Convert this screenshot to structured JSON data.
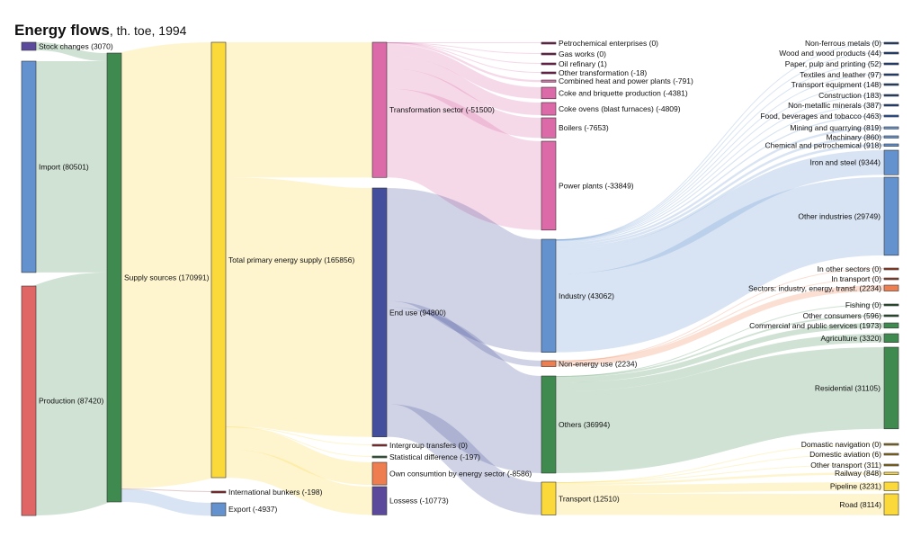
{
  "title": {
    "main": "Energy flows",
    "sub": ", th. toe, 1994"
  },
  "chart_data": {
    "type": "sankey",
    "title": "Energy flows, th. toe, 1994",
    "units": "th. toe",
    "year": "1994",
    "nodes": [
      {
        "id": "stock",
        "label": "Stock changes (3070)",
        "value": 3070,
        "color": "#5b4a9b",
        "column": 0
      },
      {
        "id": "import",
        "label": "Import (80501)",
        "value": 80501,
        "color": "#6392cf",
        "column": 0
      },
      {
        "id": "production",
        "label": "Production (87420)",
        "value": 87420,
        "color": "#e06666",
        "column": 0
      },
      {
        "id": "supply",
        "label": "Supply sources (170991)",
        "value": 170991,
        "color": "#3f8a4f",
        "column": 1
      },
      {
        "id": "tpes",
        "label": "Total primary energy supply (165856)",
        "value": 165856,
        "color": "#fcd93a",
        "column": 2
      },
      {
        "id": "bunkers",
        "label": "International bunkers (-198)",
        "value": 198,
        "color": "#8b2a2a",
        "column": 2
      },
      {
        "id": "export",
        "label": "Export (-4937)",
        "value": 4937,
        "color": "#6392cf",
        "column": 2
      },
      {
        "id": "transformation",
        "label": "Transformation sector (-51500)",
        "value": 51500,
        "color": "#dc69a8",
        "column": 3
      },
      {
        "id": "enduse",
        "label": "End use (94800)",
        "value": 94800,
        "color": "#434f9c",
        "column": 3
      },
      {
        "id": "intergroup",
        "label": "Intergroup transfers (0)",
        "value": 0,
        "color": "#8b2a2a",
        "column": 3
      },
      {
        "id": "statdiff",
        "label": "Statistical difference (-197)",
        "value": 197,
        "color": "#2f5d3a",
        "column": 3
      },
      {
        "id": "own",
        "label": "Own consumtion by energy sector (-8586)",
        "value": 8586,
        "color": "#ee7e50",
        "column": 3
      },
      {
        "id": "losses",
        "label": "Lossess (-10773)",
        "value": 10773,
        "color": "#5b4a9b",
        "column": 3
      },
      {
        "id": "petrochem",
        "label": "Petrochemical enterprises (0)",
        "value": 0,
        "color": "#7a1a4f",
        "column": 4
      },
      {
        "id": "gasworks",
        "label": "Gas works (0)",
        "value": 0,
        "color": "#7a1a4f",
        "column": 4
      },
      {
        "id": "oilref",
        "label": "Oil refinary (1)",
        "value": 1,
        "color": "#7a1a4f",
        "column": 4
      },
      {
        "id": "othertransf",
        "label": "Other transformation (-18)",
        "value": 18,
        "color": "#7a1a4f",
        "column": 4
      },
      {
        "id": "chp",
        "label": "Combined heat and power plants (-791)",
        "value": 791,
        "color": "#dc69a8",
        "column": 4
      },
      {
        "id": "coke",
        "label": "Coke and briquette production (-4381)",
        "value": 4381,
        "color": "#dc69a8",
        "column": 4
      },
      {
        "id": "cokeovens",
        "label": "Coke ovens (blast furnaces) (-4809)",
        "value": 4809,
        "color": "#dc69a8",
        "column": 4
      },
      {
        "id": "boilers",
        "label": "Boilers (-7653)",
        "value": 7653,
        "color": "#dc69a8",
        "column": 4
      },
      {
        "id": "power",
        "label": "Power plants (-33849)",
        "value": 33849,
        "color": "#dc69a8",
        "column": 4
      },
      {
        "id": "industry",
        "label": "Industry (43062)",
        "value": 43062,
        "color": "#6392cf",
        "column": 4
      },
      {
        "id": "nonenergy",
        "label": "Non-energy use (2234)",
        "value": 2234,
        "color": "#ee7e50",
        "column": 4
      },
      {
        "id": "others",
        "label": "Others (36994)",
        "value": 36994,
        "color": "#3f8a4f",
        "column": 4
      },
      {
        "id": "transport",
        "label": "Transport (12510)",
        "value": 12510,
        "color": "#fcd93a",
        "column": 4
      },
      {
        "id": "nonferrous",
        "label": "Non-ferrous metals (0)",
        "value": 0,
        "color": "#1e3f7a",
        "column": 5
      },
      {
        "id": "wood",
        "label": "Wood and wood products (44)",
        "value": 44,
        "color": "#1e3f7a",
        "column": 5
      },
      {
        "id": "paper",
        "label": "Paper, pulp and printing (52)",
        "value": 52,
        "color": "#1e3f7a",
        "column": 5
      },
      {
        "id": "textiles",
        "label": "Textiles and leather (97)",
        "value": 97,
        "color": "#1e3f7a",
        "column": 5
      },
      {
        "id": "transpeq",
        "label": "Transport equipment (148)",
        "value": 148,
        "color": "#1e3f7a",
        "column": 5
      },
      {
        "id": "construction",
        "label": "Construction (183)",
        "value": 183,
        "color": "#1e3f7a",
        "column": 5
      },
      {
        "id": "nonmetallic",
        "label": "Non-metallic minerals (387)",
        "value": 387,
        "color": "#1e3f7a",
        "column": 5
      },
      {
        "id": "food",
        "label": "Food, beverages and tobacco (463)",
        "value": 463,
        "color": "#2a55a0",
        "column": 5
      },
      {
        "id": "mining",
        "label": "Mining and quarrying (819)",
        "value": 819,
        "color": "#6392cf",
        "column": 5
      },
      {
        "id": "machinary",
        "label": "Machinary (860)",
        "value": 860,
        "color": "#6392cf",
        "column": 5
      },
      {
        "id": "chemical",
        "label": "Chemical and petrochemical (918)",
        "value": 918,
        "color": "#6392cf",
        "column": 5
      },
      {
        "id": "ironsteel",
        "label": "Iron and steel (9344)",
        "value": 9344,
        "color": "#6392cf",
        "column": 5
      },
      {
        "id": "otherind",
        "label": "Other industries (29749)",
        "value": 29749,
        "color": "#6392cf",
        "column": 5
      },
      {
        "id": "inothersectors",
        "label": "In other sectors (0)",
        "value": 0,
        "color": "#9a3a22",
        "column": 5
      },
      {
        "id": "intransport",
        "label": "In transport (0)",
        "value": 0,
        "color": "#9a3a22",
        "column": 5
      },
      {
        "id": "sectorsind",
        "label": "Sectors: industry, energy, transf. (2234)",
        "value": 2234,
        "color": "#ee7e50",
        "column": 5
      },
      {
        "id": "fishing",
        "label": "Fishing (0)",
        "value": 0,
        "color": "#244f2c",
        "column": 5
      },
      {
        "id": "otherconsumers",
        "label": "Other consumers (596)",
        "value": 596,
        "color": "#244f2c",
        "column": 5
      },
      {
        "id": "commercial",
        "label": "Commercial and public services (1973)",
        "value": 1973,
        "color": "#3f8a4f",
        "column": 5
      },
      {
        "id": "agriculture",
        "label": "Agriculture (3320)",
        "value": 3320,
        "color": "#3f8a4f",
        "column": 5
      },
      {
        "id": "residential",
        "label": "Residential (31105)",
        "value": 31105,
        "color": "#3f8a4f",
        "column": 5
      },
      {
        "id": "domnav",
        "label": "Domastic navigation (0)",
        "value": 0,
        "color": "#8a6d1a",
        "column": 5
      },
      {
        "id": "domavi",
        "label": "Domestic aviation (6)",
        "value": 6,
        "color": "#8a6d1a",
        "column": 5
      },
      {
        "id": "othertransport",
        "label": "Other transport (311)",
        "value": 311,
        "color": "#8a6d1a",
        "column": 5
      },
      {
        "id": "railway",
        "label": "Railway (848)",
        "value": 848,
        "color": "#fcd93a",
        "column": 5
      },
      {
        "id": "pipeline",
        "label": "Pipeline (3231)",
        "value": 3231,
        "color": "#fcd93a",
        "column": 5
      },
      {
        "id": "road",
        "label": "Road (8114)",
        "value": 8114,
        "color": "#fcd93a",
        "column": 5
      }
    ],
    "links": [
      {
        "source": "stock",
        "target": "supply",
        "value": 3070
      },
      {
        "source": "import",
        "target": "supply",
        "value": 80501
      },
      {
        "source": "production",
        "target": "supply",
        "value": 87420
      },
      {
        "source": "supply",
        "target": "tpes",
        "value": 165856
      },
      {
        "source": "supply",
        "target": "bunkers",
        "value": 198
      },
      {
        "source": "supply",
        "target": "export",
        "value": 4937
      },
      {
        "source": "tpes",
        "target": "transformation",
        "value": 51500
      },
      {
        "source": "tpes",
        "target": "enduse",
        "value": 94800
      },
      {
        "source": "tpes",
        "target": "intergroup",
        "value": 0
      },
      {
        "source": "tpes",
        "target": "statdiff",
        "value": 197
      },
      {
        "source": "tpes",
        "target": "own",
        "value": 8586
      },
      {
        "source": "tpes",
        "target": "losses",
        "value": 10773
      },
      {
        "source": "transformation",
        "target": "petrochem",
        "value": 0
      },
      {
        "source": "transformation",
        "target": "gasworks",
        "value": 0
      },
      {
        "source": "transformation",
        "target": "oilref",
        "value": 1
      },
      {
        "source": "transformation",
        "target": "othertransf",
        "value": 18
      },
      {
        "source": "transformation",
        "target": "chp",
        "value": 791
      },
      {
        "source": "transformation",
        "target": "coke",
        "value": 4381
      },
      {
        "source": "transformation",
        "target": "cokeovens",
        "value": 4809
      },
      {
        "source": "transformation",
        "target": "boilers",
        "value": 7653
      },
      {
        "source": "transformation",
        "target": "power",
        "value": 33849
      },
      {
        "source": "enduse",
        "target": "industry",
        "value": 43062
      },
      {
        "source": "enduse",
        "target": "nonenergy",
        "value": 2234
      },
      {
        "source": "enduse",
        "target": "others",
        "value": 36994
      },
      {
        "source": "enduse",
        "target": "transport",
        "value": 12510
      },
      {
        "source": "industry",
        "target": "nonferrous",
        "value": 0
      },
      {
        "source": "industry",
        "target": "wood",
        "value": 44
      },
      {
        "source": "industry",
        "target": "paper",
        "value": 52
      },
      {
        "source": "industry",
        "target": "textiles",
        "value": 97
      },
      {
        "source": "industry",
        "target": "transpeq",
        "value": 148
      },
      {
        "source": "industry",
        "target": "construction",
        "value": 183
      },
      {
        "source": "industry",
        "target": "nonmetallic",
        "value": 387
      },
      {
        "source": "industry",
        "target": "food",
        "value": 463
      },
      {
        "source": "industry",
        "target": "mining",
        "value": 819
      },
      {
        "source": "industry",
        "target": "machinary",
        "value": 860
      },
      {
        "source": "industry",
        "target": "chemical",
        "value": 918
      },
      {
        "source": "industry",
        "target": "ironsteel",
        "value": 9344
      },
      {
        "source": "industry",
        "target": "otherind",
        "value": 29749
      },
      {
        "source": "nonenergy",
        "target": "inothersectors",
        "value": 0
      },
      {
        "source": "nonenergy",
        "target": "intransport",
        "value": 0
      },
      {
        "source": "nonenergy",
        "target": "sectorsind",
        "value": 2234
      },
      {
        "source": "others",
        "target": "fishing",
        "value": 0
      },
      {
        "source": "others",
        "target": "otherconsumers",
        "value": 596
      },
      {
        "source": "others",
        "target": "commercial",
        "value": 1973
      },
      {
        "source": "others",
        "target": "agriculture",
        "value": 3320
      },
      {
        "source": "others",
        "target": "residential",
        "value": 31105
      },
      {
        "source": "transport",
        "target": "domnav",
        "value": 0
      },
      {
        "source": "transport",
        "target": "domavi",
        "value": 6
      },
      {
        "source": "transport",
        "target": "othertransport",
        "value": 311
      },
      {
        "source": "transport",
        "target": "railway",
        "value": 848
      },
      {
        "source": "transport",
        "target": "pipeline",
        "value": 3231
      },
      {
        "source": "transport",
        "target": "road",
        "value": 8114
      }
    ]
  }
}
